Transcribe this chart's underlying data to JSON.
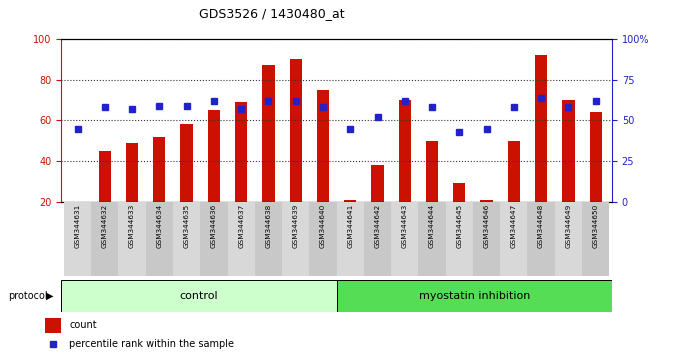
{
  "title": "GDS3526 / 1430480_at",
  "samples": [
    "GSM344631",
    "GSM344632",
    "GSM344633",
    "GSM344634",
    "GSM344635",
    "GSM344636",
    "GSM344637",
    "GSM344638",
    "GSM344639",
    "GSM344640",
    "GSM344641",
    "GSM344642",
    "GSM344643",
    "GSM344644",
    "GSM344645",
    "GSM344646",
    "GSM344647",
    "GSM344648",
    "GSM344649",
    "GSM344650"
  ],
  "bar_values": [
    20,
    45,
    49,
    52,
    58,
    65,
    69,
    87,
    90,
    75,
    21,
    38,
    70,
    50,
    29,
    21,
    50,
    92,
    70,
    64
  ],
  "percentile_values": [
    45,
    58,
    57,
    59,
    59,
    62,
    57,
    62,
    62,
    58,
    45,
    52,
    62,
    58,
    43,
    45,
    58,
    64,
    58,
    62
  ],
  "control_count": 10,
  "bar_color": "#CC1100",
  "percentile_color": "#2222CC",
  "control_bg": "#CCFFCC",
  "myostatin_bg": "#55DD55",
  "left_axis_color": "#CC1100",
  "right_axis_color": "#2222CC",
  "ylim_left": [
    20,
    100
  ],
  "ylim_right": [
    0,
    100
  ],
  "control_label": "control",
  "myostatin_label": "myostatin inhibition",
  "legend_count": "count",
  "legend_percentile": "percentile rank within the sample",
  "bar_width": 0.45,
  "tick_bg_even": "#D8D8D8",
  "tick_bg_odd": "#C8C8C8"
}
